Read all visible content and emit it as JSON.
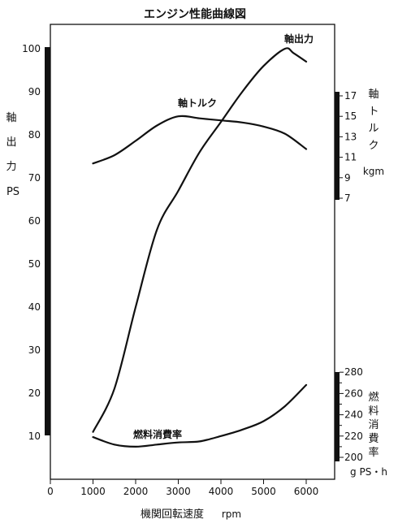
{
  "chart_data": {
    "type": "line",
    "title": "エンジン性能曲線図",
    "x_axis": {
      "label": "機関回転速度",
      "unit": "rpm",
      "range": [
        0,
        6000
      ],
      "ticks": [
        0,
        1000,
        2000,
        3000,
        4000,
        5000,
        6000
      ]
    },
    "axes": {
      "power": {
        "label_chars": [
          "軸",
          "出",
          "力"
        ],
        "unit": "PS",
        "range": [
          0,
          102
        ],
        "ticks": [
          10,
          20,
          30,
          40,
          50,
          60,
          70,
          80,
          90,
          100
        ]
      },
      "torque": {
        "label_chars": [
          "軸",
          "ト",
          "ル",
          "ク"
        ],
        "unit": "kgm",
        "range": [
          7,
          17
        ],
        "ticks": [
          7,
          9,
          11,
          13,
          15,
          17
        ]
      },
      "fuel": {
        "label_chars": [
          "燃",
          "料",
          "消",
          "費",
          "率"
        ],
        "unit": "g PS・h",
        "range": [
          200,
          280
        ],
        "ticks": [
          200,
          220,
          240,
          260,
          280
        ],
        "minor_ticks": [
          210,
          230,
          250,
          270
        ]
      }
    },
    "series": [
      {
        "name": "軸出力",
        "axis": "power",
        "x": [
          1000,
          1500,
          2000,
          2500,
          3000,
          3500,
          4000,
          4500,
          5000,
          5500,
          5700,
          6000
        ],
        "y": [
          11,
          21,
          40,
          58,
          67,
          76,
          83,
          90,
          96,
          100,
          99,
          97
        ]
      },
      {
        "name": "軸トルク",
        "axis": "torque",
        "x": [
          1000,
          1500,
          2000,
          2500,
          3000,
          3500,
          4000,
          4500,
          5000,
          5500,
          6000
        ],
        "y": [
          10.4,
          11.2,
          12.6,
          14.1,
          15.0,
          14.8,
          14.6,
          14.4,
          14.0,
          13.3,
          11.8
        ]
      },
      {
        "name": "燃料消費率",
        "axis": "fuel",
        "x": [
          1000,
          1500,
          2000,
          2500,
          3000,
          3500,
          4000,
          4500,
          5000,
          5500,
          6000
        ],
        "y": [
          219,
          212,
          210,
          212,
          214,
          215,
          220,
          226,
          234,
          248,
          268
        ]
      }
    ]
  }
}
